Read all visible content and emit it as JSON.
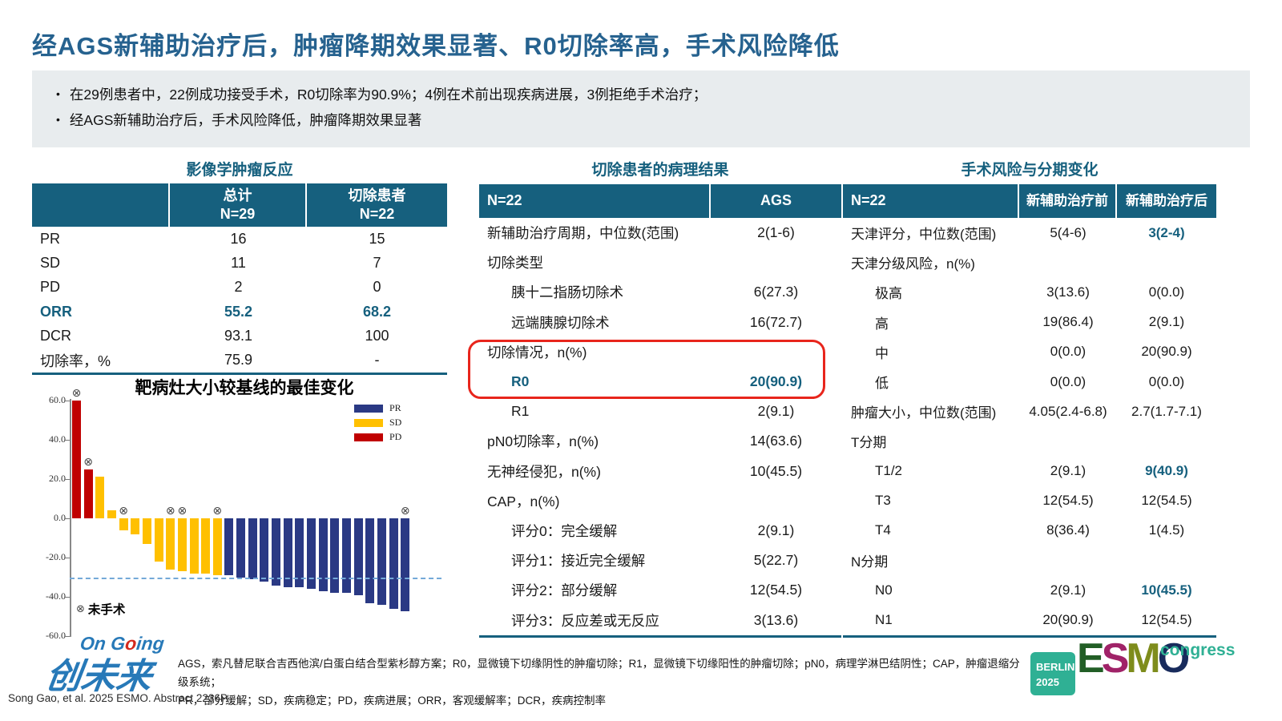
{
  "slide": {
    "title": "经AGS新辅助治疗后，肿瘤降期效果显著、R0切除率高，手术风险降低",
    "bullet_glyph": "•",
    "bullets": [
      "在29例患者中，22例成功接受手术，R0切除率为90.9%；4例在术前出现疾病进展，3例拒绝手术治疗；",
      "经AGS新辅助治疗后，手术风险降低，肿瘤降期效果显著"
    ]
  },
  "colors": {
    "header_teal": "#16607E",
    "title_blue": "#26628F",
    "highlight_blue": "#16607E",
    "red_box": "#E8251C",
    "bullet_box_bg": "#E8ECEE",
    "pr_navy": "#2A3984",
    "sd_gold": "#FFC000",
    "pd_red": "#C00000",
    "ref_dashed_blue": "#74A9D8"
  },
  "left_panel": {
    "title": "影像学肿瘤反应",
    "header": {
      "col1": "",
      "col2_line1": "总计",
      "col2_line2": "N=29",
      "col3_line1": "切除患者",
      "col3_line2": "N=22"
    },
    "rows": [
      {
        "label": "PR",
        "total": "16",
        "resected": "15"
      },
      {
        "label": "SD",
        "total": "11",
        "resected": "7"
      },
      {
        "label": "PD",
        "total": "2",
        "resected": "0"
      },
      {
        "label": "ORR",
        "total": "55.2",
        "resected": "68.2"
      },
      {
        "label": "DCR",
        "total": "93.1",
        "resected": "100"
      },
      {
        "label": "切除率，%",
        "total": "75.9",
        "resected": "-"
      }
    ]
  },
  "chart_data": {
    "type": "bar",
    "title": "靶病灶大小较基线的最佳变化",
    "xlabel": "",
    "ylabel": "",
    "ylim": [
      -60,
      60
    ],
    "yticks": [
      60,
      40,
      20,
      0,
      -20,
      -40,
      -60
    ],
    "ytick_labels": [
      "60.0",
      "40.0",
      "20.0",
      "0.0",
      "-20.0",
      "-40.0",
      "-60.0"
    ],
    "reference_line": -30,
    "grid": false,
    "legend_position": "top-right",
    "legend": [
      {
        "name": "PR",
        "color": "#2A3984"
      },
      {
        "name": "SD",
        "color": "#FFC000"
      },
      {
        "name": "PD",
        "color": "#C00000"
      }
    ],
    "marker_glyph": "⊗",
    "marker_note": "未手术",
    "bars": [
      {
        "value": 60,
        "group": "PD",
        "no_surgery": true
      },
      {
        "value": 25,
        "group": "PD",
        "no_surgery": true
      },
      {
        "value": 21,
        "group": "SD",
        "no_surgery": false
      },
      {
        "value": 4,
        "group": "SD",
        "no_surgery": false
      },
      {
        "value": -6,
        "group": "SD",
        "no_surgery": true
      },
      {
        "value": -8,
        "group": "SD",
        "no_surgery": false
      },
      {
        "value": -13,
        "group": "SD",
        "no_surgery": false
      },
      {
        "value": -22,
        "group": "SD",
        "no_surgery": false
      },
      {
        "value": -26,
        "group": "SD",
        "no_surgery": true
      },
      {
        "value": -27,
        "group": "SD",
        "no_surgery": true
      },
      {
        "value": -28,
        "group": "SD",
        "no_surgery": false
      },
      {
        "value": -28,
        "group": "SD",
        "no_surgery": false
      },
      {
        "value": -29,
        "group": "SD",
        "no_surgery": true
      },
      {
        "value": -29,
        "group": "PR",
        "no_surgery": false
      },
      {
        "value": -30,
        "group": "PR",
        "no_surgery": false
      },
      {
        "value": -31,
        "group": "PR",
        "no_surgery": false
      },
      {
        "value": -32,
        "group": "PR",
        "no_surgery": false
      },
      {
        "value": -34,
        "group": "PR",
        "no_surgery": false
      },
      {
        "value": -35,
        "group": "PR",
        "no_surgery": false
      },
      {
        "value": -35,
        "group": "PR",
        "no_surgery": false
      },
      {
        "value": -36,
        "group": "PR",
        "no_surgery": false
      },
      {
        "value": -37,
        "group": "PR",
        "no_surgery": false
      },
      {
        "value": -38,
        "group": "PR",
        "no_surgery": false
      },
      {
        "value": -38,
        "group": "PR",
        "no_surgery": false
      },
      {
        "value": -39,
        "group": "PR",
        "no_surgery": false
      },
      {
        "value": -43,
        "group": "PR",
        "no_surgery": false
      },
      {
        "value": -44,
        "group": "PR",
        "no_surgery": false
      },
      {
        "value": -46,
        "group": "PR",
        "no_surgery": false
      },
      {
        "value": -47,
        "group": "PR",
        "no_surgery": true
      }
    ]
  },
  "middle_panel": {
    "title": "切除患者的病理结果",
    "header": {
      "left": "N=22",
      "right": "AGS"
    },
    "rows": [
      {
        "label": "新辅助治疗周期，中位数(范围)",
        "value": "2(1-6)"
      },
      {
        "label": "切除类型",
        "value": ""
      },
      {
        "label": "胰十二指肠切除术",
        "value": "6(27.3)"
      },
      {
        "label": "远端胰腺切除术",
        "value": "16(72.7)"
      },
      {
        "label": "切除情况，n(%)",
        "value": ""
      },
      {
        "label": "R0",
        "value": "20(90.9)"
      },
      {
        "label": "R1",
        "value": "2(9.1)"
      },
      {
        "label": "pN0切除率，n(%)",
        "value": "14(63.6)"
      },
      {
        "label": "无神经侵犯，n(%)",
        "value": "10(45.5)"
      },
      {
        "label": "CAP，n(%)",
        "value": ""
      },
      {
        "label": "评分0：完全缓解",
        "value": "2(9.1)"
      },
      {
        "label": "评分1：接近完全缓解",
        "value": "5(22.7)"
      },
      {
        "label": "评分2：部分缓解",
        "value": "12(54.5)"
      },
      {
        "label": "评分3：反应差或无反应",
        "value": "3(13.6)"
      }
    ]
  },
  "right_panel": {
    "title": "手术风险与分期变化",
    "header": {
      "left": "N=22",
      "pre": "新辅助治疗前",
      "post": "新辅助治疗后"
    },
    "rows": [
      {
        "label": "天津评分，中位数(范围)",
        "pre": "5(4-6)",
        "post": "3(2-4)"
      },
      {
        "label": "天津分级风险，n(%)",
        "pre": "",
        "post": ""
      },
      {
        "label": "极高",
        "pre": "3(13.6)",
        "post": "0(0.0)"
      },
      {
        "label": "高",
        "pre": "19(86.4)",
        "post": "2(9.1)"
      },
      {
        "label": "中",
        "pre": "0(0.0)",
        "post": "20(90.9)"
      },
      {
        "label": "低",
        "pre": "0(0.0)",
        "post": "0(0.0)"
      },
      {
        "label": "肿瘤大小，中位数(范围)",
        "pre": "4.05(2.4-6.8)",
        "post": "2.7(1.7-7.1)"
      },
      {
        "label": "T分期",
        "pre": "",
        "post": ""
      },
      {
        "label": "T1/2",
        "pre": "2(9.1)",
        "post": "9(40.9)"
      },
      {
        "label": "T3",
        "pre": "12(54.5)",
        "post": "12(54.5)"
      },
      {
        "label": "T4",
        "pre": "8(36.4)",
        "post": "1(4.5)"
      },
      {
        "label": "N分期",
        "pre": "",
        "post": ""
      },
      {
        "label": "N0",
        "pre": "2(9.1)",
        "post": "10(45.5)"
      },
      {
        "label": "N1",
        "pre": "20(90.9)",
        "post": "12(54.5)"
      }
    ]
  },
  "footer": {
    "logo": {
      "top_1": "On G",
      "top_o": "o",
      "top_2": "ing",
      "main": "创未来"
    },
    "footnote_line1": "AGS，索凡替尼联合吉西他滨/白蛋白结合型紫杉醇方案；R0，显微镜下切缘阴性的肿瘤切除；R1，显微镜下切缘阳性的肿瘤切除；pN0，病理学淋巴结阴性；CAP，肿瘤退缩分级系统；",
    "footnote_line2": "PR，部分缓解；SD，疾病稳定；PD，疾病进展；ORR，客观缓解率；DCR，疾病控制率",
    "citation": "Song Gao, et al. 2025 ESMO. Abstract 2236P.",
    "esmo": {
      "badge_line1": "BERLIN",
      "badge_line2": "2025",
      "badge_color": "#2FB094",
      "letters": [
        {
          "char": "E",
          "color": "#225E26"
        },
        {
          "char": "S",
          "color": "#A02368"
        },
        {
          "char": "M",
          "color": "#7E8C1C"
        },
        {
          "char": "O",
          "color": "#182B5C"
        }
      ],
      "congress": "congress",
      "congress_color": "#2FB094"
    }
  }
}
